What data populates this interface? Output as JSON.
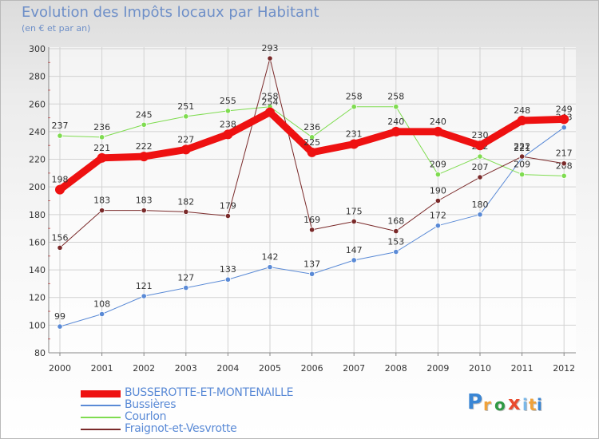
{
  "header": {
    "title": "Evolution des Impôts locaux par Habitant",
    "subtitle": "(en € et par an)"
  },
  "logo": {
    "text": "Proxiti",
    "colors": [
      "#3a86d4",
      "#f0a23a",
      "#2f9a44",
      "#e94b2f",
      "#7ab8e8",
      "#f0a23a",
      "#3a86d4"
    ]
  },
  "chart_data": {
    "type": "line",
    "title": "Evolution des Impôts locaux par Habitant",
    "subtitle": "(en € et par an)",
    "xlabel": "",
    "ylabel": "",
    "x": [
      "2000",
      "2001",
      "2002",
      "2003",
      "2004",
      "2005",
      "2006",
      "2007",
      "2008",
      "2009",
      "2010",
      "2011",
      "2012"
    ],
    "ylim": [
      80,
      300
    ],
    "yticks": [
      80,
      100,
      120,
      140,
      160,
      180,
      200,
      220,
      240,
      260,
      280,
      300
    ],
    "grid": true,
    "legend_position": "bottom-left",
    "series": [
      {
        "name": "Bussières",
        "color": "#5a8ad6",
        "width": 1,
        "values": [
          99,
          108,
          121,
          127,
          133,
          142,
          137,
          147,
          153,
          172,
          180,
          221,
          243
        ]
      },
      {
        "name": "Courlon",
        "color": "#7fdc50",
        "width": 1,
        "values": [
          237,
          236,
          245,
          251,
          255,
          258,
          236,
          258,
          258,
          209,
          222,
          209,
          208
        ]
      },
      {
        "name": "Fraignot-et-Vesvrotte",
        "color": "#7a2a2a",
        "width": 1,
        "values": [
          156,
          183,
          183,
          182,
          179,
          293,
          169,
          175,
          168,
          190,
          207,
          222,
          217
        ]
      },
      {
        "name": "BUSSEROTTE-ET-MONTENAILLE",
        "color": "#ee1111",
        "width": 9,
        "values": [
          198,
          221,
          222,
          227,
          238,
          254,
          225,
          231,
          240,
          240,
          230,
          248,
          249
        ]
      }
    ]
  }
}
